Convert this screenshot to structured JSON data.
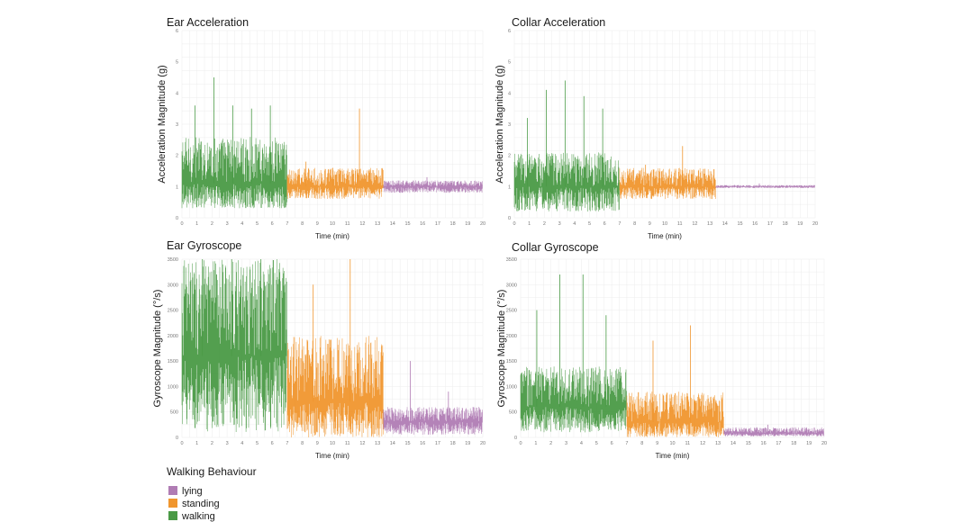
{
  "chart_data": [
    {
      "type": "line",
      "title": "Ear Acceleration",
      "xlabel": "Time (min)",
      "ylabel": "Acceleration Magnitude (g)",
      "xlim": [
        0,
        20
      ],
      "ylim": [
        0,
        6
      ],
      "xticks": [
        "0",
        "1",
        "2",
        "3",
        "4",
        "5",
        "6",
        "7",
        "8",
        "9",
        "10",
        "11",
        "12",
        "13",
        "14",
        "15",
        "16",
        "17",
        "18",
        "19",
        "20"
      ],
      "yticks": [
        "0",
        "1",
        "2",
        "3",
        "4",
        "5",
        "6"
      ],
      "grid": true,
      "series": [
        {
          "name": "walking",
          "x_range": [
            0,
            7.0
          ],
          "baseline": 1.1,
          "typical_max": 2.6,
          "typical_min": 0.3,
          "peaks": [
            3.6,
            4.5,
            3.6,
            3.5,
            3.6
          ]
        },
        {
          "name": "standing",
          "x_range": [
            7.0,
            13.4
          ],
          "baseline": 1.0,
          "typical_max": 1.6,
          "typical_min": 0.6,
          "peaks": [
            1.8,
            1.6,
            3.5
          ]
        },
        {
          "name": "lying",
          "x_range": [
            13.4,
            20.0
          ],
          "baseline": 1.0,
          "typical_max": 1.2,
          "typical_min": 0.8,
          "peaks": [
            1.3
          ]
        }
      ]
    },
    {
      "type": "line",
      "title": "Collar Acceleration",
      "xlabel": "Time (min)",
      "ylabel": "Acceleration Magnitude (g)",
      "xlim": [
        0,
        20
      ],
      "ylim": [
        0,
        6
      ],
      "xticks": [
        "0",
        "1",
        "2",
        "3",
        "4",
        "5",
        "6",
        "7",
        "8",
        "9",
        "10",
        "11",
        "12",
        "13",
        "14",
        "15",
        "16",
        "17",
        "18",
        "19",
        "20"
      ],
      "yticks": [
        "0",
        "1",
        "2",
        "3",
        "4",
        "5",
        "6"
      ],
      "grid": true,
      "series": [
        {
          "name": "walking",
          "x_range": [
            0,
            7.0
          ],
          "baseline": 1.0,
          "typical_max": 2.1,
          "typical_min": 0.2,
          "peaks": [
            3.2,
            4.1,
            4.4,
            3.9,
            3.5
          ]
        },
        {
          "name": "standing",
          "x_range": [
            7.0,
            13.4
          ],
          "baseline": 1.0,
          "typical_max": 1.6,
          "typical_min": 0.6,
          "peaks": [
            1.7,
            2.3
          ]
        },
        {
          "name": "lying",
          "x_range": [
            13.4,
            20.0
          ],
          "baseline": 1.0,
          "typical_max": 1.05,
          "typical_min": 0.95,
          "peaks": [
            1.1
          ]
        }
      ]
    },
    {
      "type": "line",
      "title": "Ear Gyroscope",
      "xlabel": "Time (min)",
      "ylabel": "Gyroscope Magnitude (°/s)",
      "xlim": [
        0,
        20
      ],
      "ylim": [
        0,
        3500
      ],
      "xticks": [
        "0",
        "1",
        "2",
        "3",
        "4",
        "5",
        "6",
        "7",
        "8",
        "9",
        "10",
        "11",
        "12",
        "13",
        "14",
        "15",
        "16",
        "17",
        "18",
        "19",
        "20"
      ],
      "yticks": [
        "0",
        "500",
        "1000",
        "1500",
        "2000",
        "2500",
        "3000",
        "3500"
      ],
      "grid": true,
      "series": [
        {
          "name": "walking",
          "x_range": [
            0,
            7.0
          ],
          "baseline": 1600,
          "typical_max": 3500,
          "typical_min": 100,
          "peaks": [
            3500,
            3500,
            3500
          ]
        },
        {
          "name": "standing",
          "x_range": [
            7.0,
            13.4
          ],
          "baseline": 700,
          "typical_max": 2000,
          "typical_min": 0,
          "peaks": [
            3000,
            3500
          ]
        },
        {
          "name": "lying",
          "x_range": [
            13.4,
            20.0
          ],
          "baseline": 300,
          "typical_max": 600,
          "typical_min": 50,
          "peaks": [
            1500,
            900
          ]
        }
      ]
    },
    {
      "type": "line",
      "title": "Collar Gyroscope",
      "xlabel": "Time (min)",
      "ylabel": "Gyroscope Magnitude (°/s)",
      "xlim": [
        0,
        20
      ],
      "ylim": [
        0,
        3500
      ],
      "xticks": [
        "0",
        "1",
        "2",
        "3",
        "4",
        "5",
        "6",
        "7",
        "8",
        "9",
        "10",
        "11",
        "12",
        "13",
        "14",
        "15",
        "16",
        "17",
        "18",
        "19",
        "20"
      ],
      "yticks": [
        "0",
        "500",
        "1000",
        "1500",
        "2000",
        "2500",
        "3000",
        "3500"
      ],
      "grid": true,
      "series": [
        {
          "name": "walking",
          "x_range": [
            0,
            7.0
          ],
          "baseline": 600,
          "typical_max": 1400,
          "typical_min": 100,
          "peaks": [
            2500,
            3200,
            3200,
            2400
          ]
        },
        {
          "name": "standing",
          "x_range": [
            7.0,
            13.4
          ],
          "baseline": 300,
          "typical_max": 900,
          "typical_min": 0,
          "peaks": [
            1900,
            2200
          ]
        },
        {
          "name": "lying",
          "x_range": [
            13.4,
            20.0
          ],
          "baseline": 80,
          "typical_max": 200,
          "typical_min": 20,
          "peaks": [
            250
          ]
        }
      ]
    }
  ],
  "legend": {
    "title": "Walking Behaviour",
    "items": [
      {
        "label": "lying",
        "color": "#b07cb4"
      },
      {
        "label": "standing",
        "color": "#f0962e"
      },
      {
        "label": "walking",
        "color": "#4a9a46"
      }
    ]
  },
  "colors": {
    "walking": "#4a9a46",
    "standing": "#f0962e",
    "lying": "#b07cb4",
    "grid": "#ececec"
  }
}
